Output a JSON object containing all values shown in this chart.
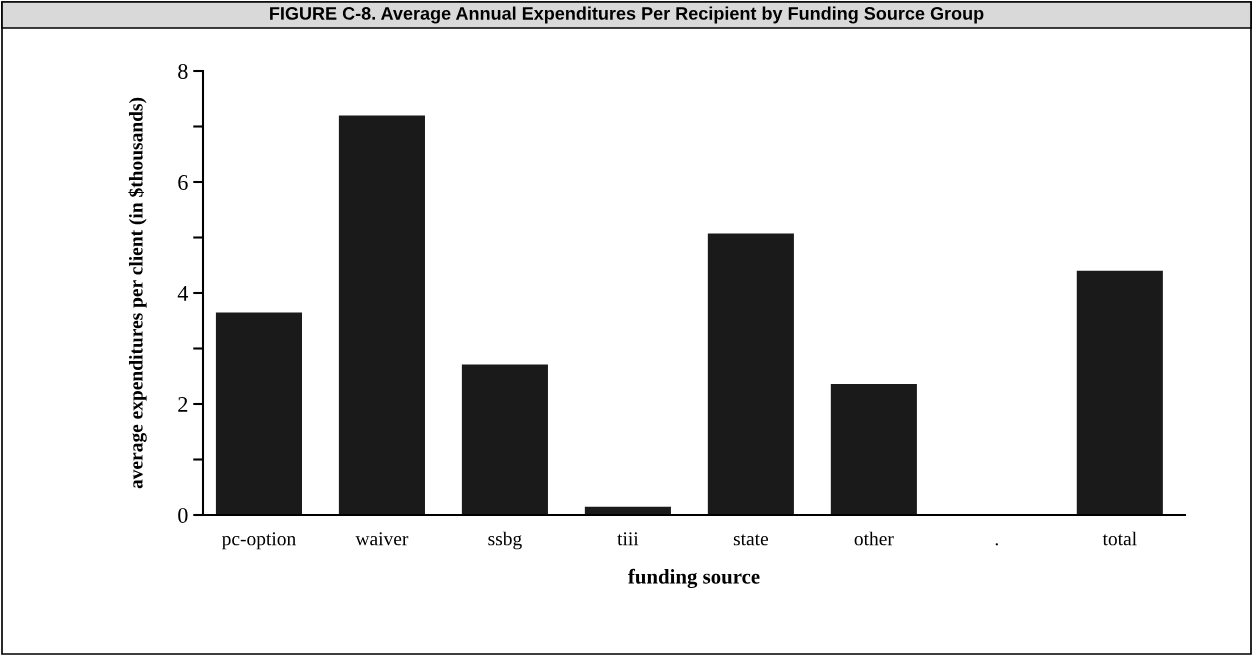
{
  "chart_data": {
    "type": "bar",
    "title": "FIGURE C-8. Average Annual Expenditures Per Recipient by Funding Source Group",
    "xlabel": "funding source",
    "ylabel": "average expenditures per client (in $thousands)",
    "categories": [
      "pc-option",
      "waiver",
      "ssbg",
      "tiii",
      "state",
      "other",
      ".",
      "total"
    ],
    "values": [
      3.65,
      7.2,
      2.71,
      0.15,
      5.07,
      2.36,
      null,
      4.4
    ],
    "color": "#1a1a1a",
    "ylim": [
      0,
      8
    ],
    "yticks": [
      0,
      {
        "value": 1,
        "label": null
      },
      2,
      {
        "value": 3,
        "label": null
      },
      4,
      {
        "value": 5,
        "label": null
      },
      6,
      {
        "value": 7,
        "label": null
      },
      8
    ],
    "grid": false,
    "legend": false
  }
}
